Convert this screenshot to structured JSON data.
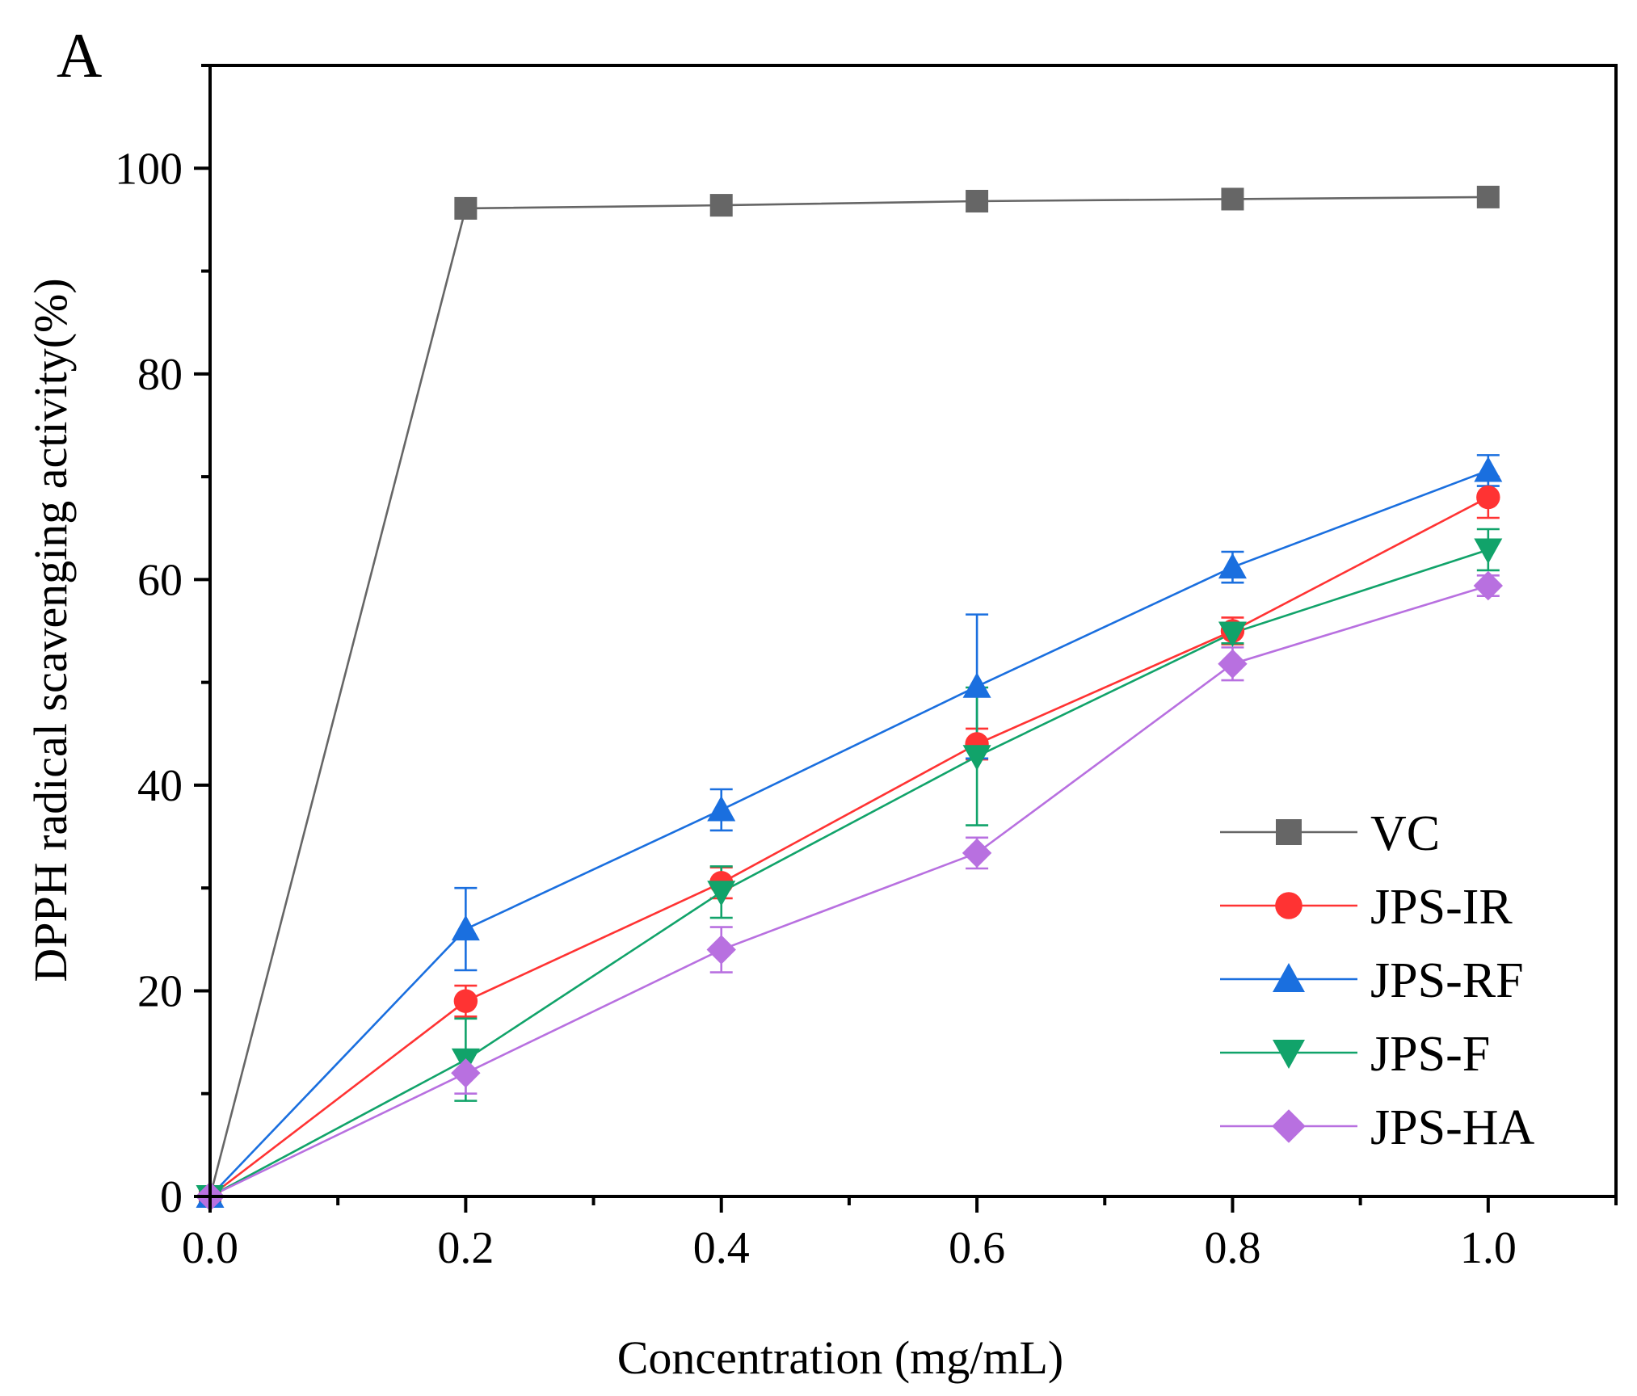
{
  "chart_data": {
    "type": "line",
    "panel_label": "A",
    "title": "",
    "xlabel": "Concentration (mg/mL)",
    "ylabel": "DPPH radical scavenging activity(%)",
    "xlim": [
      0,
      1.1
    ],
    "ylim": [
      0,
      110
    ],
    "xticks": [
      0.0,
      0.2,
      0.4,
      0.6,
      0.8,
      1.0
    ],
    "xtick_labels": [
      "0.0",
      "0.2",
      "0.4",
      "0.6",
      "0.8",
      "1.0"
    ],
    "xminor": [
      0.1,
      0.3,
      0.5,
      0.7,
      0.9,
      1.1
    ],
    "yticks": [
      0,
      20,
      40,
      60,
      80,
      100
    ],
    "ytick_labels": [
      "0",
      "20",
      "40",
      "60",
      "80",
      "100"
    ],
    "yminor": [
      10,
      30,
      50,
      70,
      90,
      110
    ],
    "grid": false,
    "legend_position": "bottom-right",
    "x": [
      0.0,
      0.2,
      0.4,
      0.6,
      0.8,
      1.0
    ],
    "series": [
      {
        "name": "VC",
        "color": "#666666",
        "marker": "square",
        "values": [
          0,
          96.1,
          96.4,
          96.8,
          97.0,
          97.2
        ],
        "errors": [
          0,
          0,
          0,
          0,
          0,
          0
        ]
      },
      {
        "name": "JPS-IR",
        "color": "#ff3333",
        "marker": "circle",
        "values": [
          0,
          19.0,
          30.5,
          44.0,
          55.0,
          68.0
        ],
        "errors": [
          0,
          1.5,
          1.5,
          1.5,
          1.3,
          2.0
        ]
      },
      {
        "name": "JPS-RF",
        "color": "#1a6fdf",
        "marker": "triangle-up",
        "values": [
          0,
          26.0,
          37.6,
          49.6,
          61.2,
          70.6
        ],
        "errors": [
          0,
          4.0,
          2.0,
          7.0,
          1.5,
          1.5
        ]
      },
      {
        "name": "JPS-F",
        "color": "#11a36a",
        "marker": "triangle-down",
        "values": [
          0,
          13.3,
          29.6,
          42.8,
          54.8,
          62.9
        ],
        "errors": [
          0,
          4.0,
          2.5,
          6.7,
          1.0,
          2.0
        ]
      },
      {
        "name": "JPS-HA",
        "color": "#b870e0",
        "marker": "diamond",
        "values": [
          0,
          12.0,
          24.0,
          33.4,
          51.8,
          59.4
        ],
        "errors": [
          0,
          2.0,
          2.2,
          1.5,
          1.6,
          1.0
        ]
      }
    ]
  }
}
